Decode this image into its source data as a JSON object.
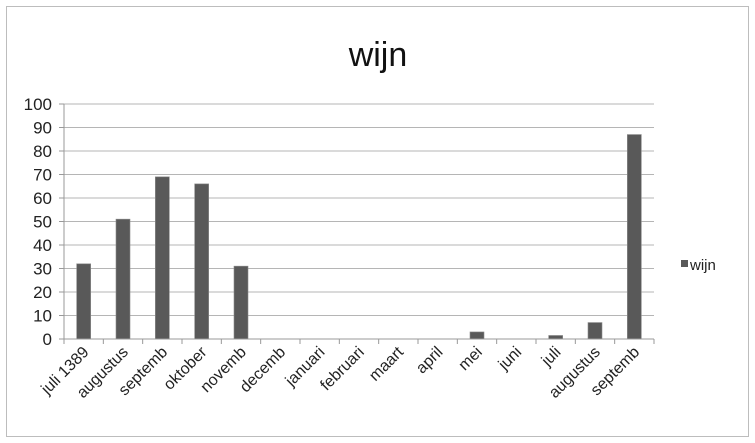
{
  "chart_data": {
    "type": "bar",
    "title": "wijn",
    "xlabel": "",
    "ylabel": "",
    "ylim": [
      0,
      100
    ],
    "yticks": [
      0,
      10,
      20,
      30,
      40,
      50,
      60,
      70,
      80,
      90,
      100
    ],
    "grid": true,
    "legend": "right",
    "categories": [
      "juli 1389",
      "augustus",
      "septemb",
      "oktober",
      "novemb",
      "decemb",
      "januari",
      "februari",
      "maart",
      "april",
      "mei",
      "juni",
      "juli",
      "augustus",
      "septemb"
    ],
    "series": [
      {
        "name": "wijn",
        "color": "#595959",
        "values": [
          32,
          51,
          69,
          66,
          31,
          0,
          0,
          0,
          0,
          0,
          3,
          0,
          1.5,
          7,
          87
        ]
      }
    ]
  }
}
